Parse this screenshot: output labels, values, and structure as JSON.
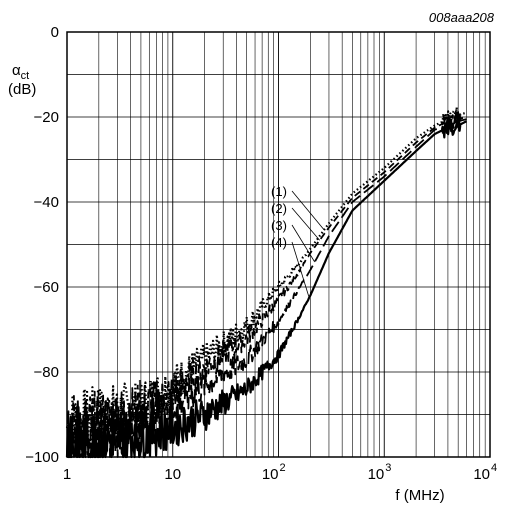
{
  "figure_id": "008aaa208",
  "chart_data": {
    "type": "line",
    "x_scale": "log",
    "xlim": [
      1,
      10000
    ],
    "ylim": [
      -100,
      0
    ],
    "grid": true,
    "y_label": {
      "symbol": "α",
      "subscript": "ct",
      "unit": "(dB)"
    },
    "x_label": "f (MHz)",
    "x_ticks": [
      {
        "value": 1,
        "base": "1",
        "exp": ""
      },
      {
        "value": 10,
        "base": "10",
        "exp": ""
      },
      {
        "value": 100,
        "base": "10",
        "exp": "2"
      },
      {
        "value": 1000,
        "base": "10",
        "exp": "3"
      },
      {
        "value": 10000,
        "base": "10",
        "exp": "4"
      }
    ],
    "y_ticks": [
      {
        "value": 0,
        "label": "0"
      },
      {
        "value": -20,
        "label": "−20"
      },
      {
        "value": -40,
        "label": "−40"
      },
      {
        "value": -60,
        "label": "−60"
      },
      {
        "value": -80,
        "label": "−80"
      },
      {
        "value": -100,
        "label": "−100"
      }
    ],
    "series": [
      {
        "name": "(1)",
        "style": "dotted",
        "points": [
          [
            1,
            -93
          ],
          [
            2,
            -91
          ],
          [
            5,
            -88
          ],
          [
            10,
            -83
          ],
          [
            20,
            -77
          ],
          [
            50,
            -69
          ],
          [
            100,
            -60
          ],
          [
            150,
            -55
          ],
          [
            200,
            -51
          ],
          [
            300,
            -45
          ],
          [
            500,
            -38
          ],
          [
            1000,
            -32
          ],
          [
            2000,
            -25
          ],
          [
            3000,
            -22
          ],
          [
            4000,
            -20.5
          ],
          [
            5000,
            -19.5
          ],
          [
            6000,
            -19
          ]
        ]
      },
      {
        "name": "(2)",
        "style": "dashed",
        "points": [
          [
            1,
            -94
          ],
          [
            2,
            -92
          ],
          [
            5,
            -89
          ],
          [
            10,
            -85
          ],
          [
            20,
            -79
          ],
          [
            50,
            -72
          ],
          [
            100,
            -63
          ],
          [
            150,
            -57
          ],
          [
            200,
            -52
          ],
          [
            300,
            -46
          ],
          [
            500,
            -39
          ],
          [
            1000,
            -33
          ],
          [
            2000,
            -26
          ],
          [
            3000,
            -22.5
          ],
          [
            4000,
            -21
          ],
          [
            5000,
            -20.5
          ],
          [
            6000,
            -20
          ]
        ]
      },
      {
        "name": "(3)",
        "style": "dashed-long",
        "points": [
          [
            1,
            -96
          ],
          [
            2,
            -94
          ],
          [
            5,
            -92
          ],
          [
            10,
            -88
          ],
          [
            20,
            -83
          ],
          [
            50,
            -77
          ],
          [
            100,
            -68
          ],
          [
            150,
            -61
          ],
          [
            200,
            -56
          ],
          [
            300,
            -48
          ],
          [
            500,
            -40
          ],
          [
            1000,
            -34
          ],
          [
            2000,
            -27
          ],
          [
            3000,
            -23
          ],
          [
            4000,
            -22
          ],
          [
            5000,
            -21
          ],
          [
            6000,
            -20.5
          ]
        ]
      },
      {
        "name": "(4)",
        "style": "solid",
        "points": [
          [
            1,
            -97
          ],
          [
            2,
            -96
          ],
          [
            5,
            -95
          ],
          [
            10,
            -93
          ],
          [
            20,
            -90
          ],
          [
            50,
            -84
          ],
          [
            100,
            -76
          ],
          [
            150,
            -68
          ],
          [
            200,
            -62
          ],
          [
            300,
            -52
          ],
          [
            500,
            -42
          ],
          [
            1000,
            -35
          ],
          [
            2000,
            -28
          ],
          [
            3000,
            -24
          ],
          [
            4000,
            -22.5
          ],
          [
            5000,
            -22
          ],
          [
            6000,
            -21
          ]
        ]
      }
    ]
  }
}
